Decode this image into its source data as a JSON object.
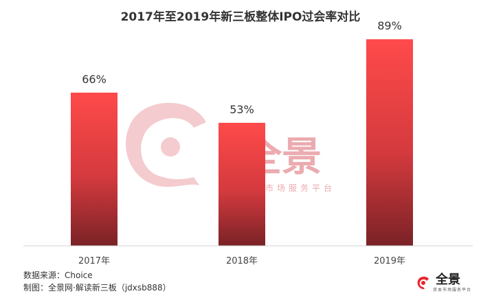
{
  "chart_data": {
    "type": "bar",
    "title": "2017年至2019年新三板整体IPO过会率对比",
    "categories": [
      "2017年",
      "2018年",
      "2019年"
    ],
    "values": [
      66,
      53,
      89
    ],
    "value_labels": [
      "66%",
      "53%",
      "89%"
    ],
    "ylim": [
      0,
      100
    ],
    "grid": false,
    "legend": "none"
  },
  "watermark": {
    "name": "全景",
    "sub": "资本市场服务平台"
  },
  "footer": {
    "source": "数据来源：Choice",
    "maker": "制图：全景网·解读新三板（jdxsb888）"
  },
  "logo": {
    "name": "全景",
    "sub": "资本市场服务平台"
  },
  "colors": {
    "bar_top": "#ff4a4a",
    "bar_bottom": "#7a2226",
    "accent": "#e8262d"
  }
}
